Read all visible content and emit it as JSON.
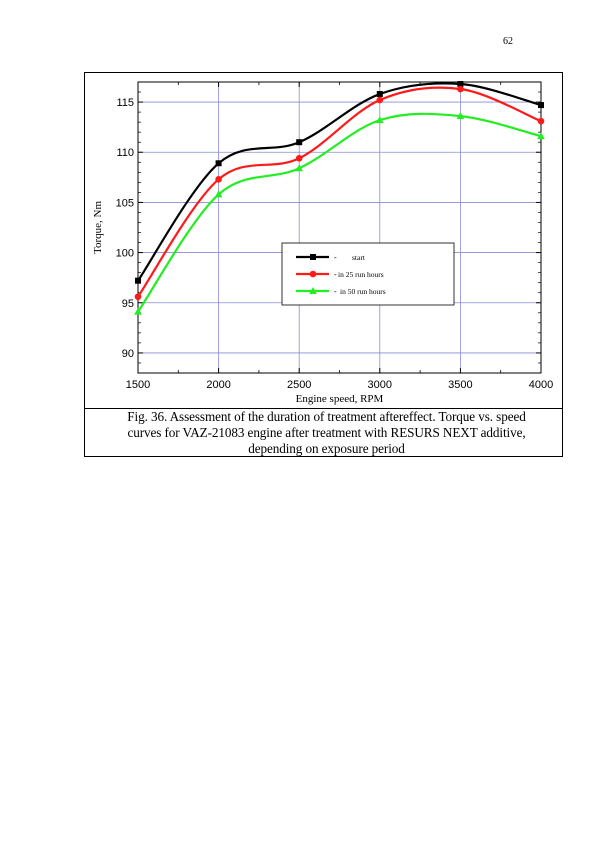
{
  "page": {
    "number": "62"
  },
  "caption": {
    "line1": "Fig. 36. Assessment of the duration of treatment aftereffect. Torque vs. speed",
    "line2": "curves for VAZ-21083 engine after treatment with RESURS NEXT additive,",
    "line3": "depending on exposure period"
  },
  "chart_data": {
    "type": "line",
    "title": "",
    "xlabel": "Engine speed, RPM",
    "ylabel": "Torque, Nm",
    "xlim": [
      1500,
      4000
    ],
    "ylim": [
      88,
      117
    ],
    "x_ticks": [
      "1500",
      "2000",
      "2500",
      "3000",
      "3500",
      "4000"
    ],
    "y_ticks": [
      "90",
      "95",
      "100",
      "105",
      "110",
      "115"
    ],
    "grid": true,
    "legend_position": "center-right",
    "x": [
      1500,
      2000,
      2500,
      3000,
      3500,
      4000
    ],
    "series": [
      {
        "name": "start",
        "color": "#000000",
        "marker": "square",
        "values": [
          97.2,
          108.9,
          111.0,
          115.8,
          116.8,
          114.7
        ]
      },
      {
        "name": "in 25 run hours",
        "color": "#ff1a1a",
        "marker": "circle",
        "values": [
          95.6,
          107.3,
          109.4,
          115.2,
          116.3,
          113.1
        ]
      },
      {
        "name": "in 50 run hours",
        "color": "#22ee22",
        "marker": "triangle",
        "values": [
          94.1,
          105.8,
          108.4,
          113.2,
          113.6,
          111.6
        ]
      }
    ]
  }
}
